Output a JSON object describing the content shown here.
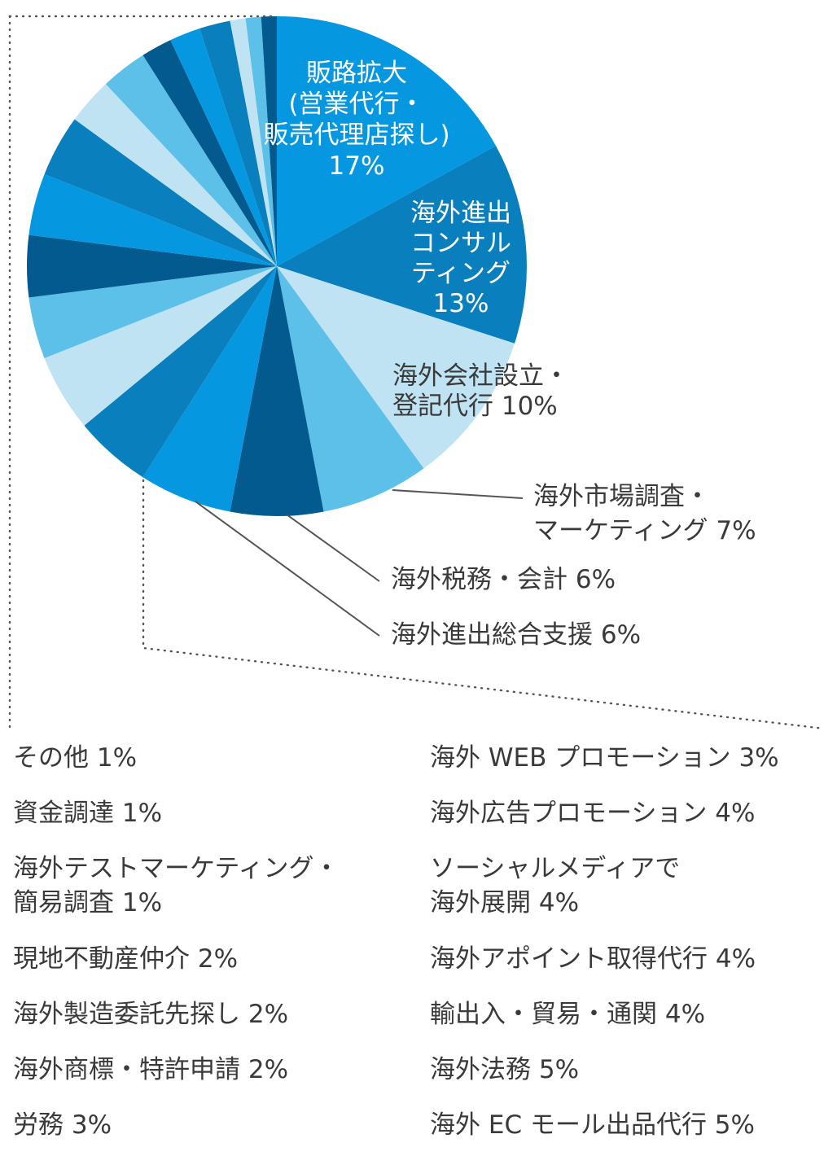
{
  "chart_data": {
    "type": "pie",
    "slices": [
      {
        "label": "販路拡大\n(営業代行・\n販売代理店探し)\n17%",
        "value": 17,
        "color": "#0598e1",
        "label_style": "inside"
      },
      {
        "label": "海外進出\nコンサル\nティング\n13%",
        "value": 13,
        "color": "#0a7fbd",
        "label_style": "inside"
      },
      {
        "label": "海外会社設立・\n登記代行 10%",
        "value": 10,
        "color": "#bfe3f2",
        "label_style": "inside-dark"
      },
      {
        "label": "海外市場調査・\nマーケティング 7%",
        "value": 7,
        "color": "#5cc0e8",
        "label_style": "callout"
      },
      {
        "label": "海外税務・会計 6%",
        "value": 6,
        "color": "#035a8e",
        "label_style": "callout"
      },
      {
        "label": "海外進出総合支援 6%",
        "value": 6,
        "color": "#0598e1",
        "label_style": "callout"
      },
      {
        "label": "海外 EC モール出品代行 5%",
        "value": 5,
        "color": "#0a7fbd",
        "label_style": "legend"
      },
      {
        "label": "海外法務 5%",
        "value": 5,
        "color": "#bfe3f2",
        "label_style": "legend"
      },
      {
        "label": "輸出入・貿易・通関 4%",
        "value": 4,
        "color": "#5cc0e8",
        "label_style": "legend"
      },
      {
        "label": "海外アポイント取得代行 4%",
        "value": 4,
        "color": "#035a8e",
        "label_style": "legend"
      },
      {
        "label": "ソーシャルメディアで\n海外展開 4%",
        "value": 4,
        "color": "#0598e1",
        "label_style": "legend"
      },
      {
        "label": "海外広告プロモーション 4%",
        "value": 4,
        "color": "#0a7fbd",
        "label_style": "legend"
      },
      {
        "label": "海外 WEB プロモーション 3%",
        "value": 3,
        "color": "#bfe3f2",
        "label_style": "legend"
      },
      {
        "label": "労務 3%",
        "value": 3,
        "color": "#5cc0e8",
        "label_style": "legend"
      },
      {
        "label": "海外商標・特許申請 2%",
        "value": 2,
        "color": "#035a8e",
        "label_style": "legend"
      },
      {
        "label": "海外製造委託先探し 2%",
        "value": 2,
        "color": "#0598e1",
        "label_style": "legend"
      },
      {
        "label": "現地不動産仲介 2%",
        "value": 2,
        "color": "#0a7fbd",
        "label_style": "legend"
      },
      {
        "label": "海外テストマーケティング・\n簡易調査 1%",
        "value": 1,
        "color": "#bfe3f2",
        "label_style": "legend"
      },
      {
        "label": "資金調達 1%",
        "value": 1,
        "color": "#5cc0e8",
        "label_style": "legend"
      },
      {
        "label": "その他 1%",
        "value": 1,
        "color": "#035a8e",
        "label_style": "legend"
      }
    ]
  },
  "legend": {
    "left": [
      "その他  1%",
      "資金調達  1%",
      "海外テストマーケティング・\n簡易調査  1%",
      "現地不動産仲介  2%",
      "海外製造委託先探し  2%",
      "海外商標・特許申請  2%",
      "労務  3%"
    ],
    "right": [
      "海外 WEB プロモーション  3%",
      "海外広告プロモーション  4%",
      "ソーシャルメディアで\n海外展開  4%",
      "海外アポイント取得代行  4%",
      "輸出入・貿易・通関  4%",
      "海外法務  5%",
      "海外 EC モール出品代行  5%"
    ]
  },
  "colors": {
    "text": "#3a3a3a",
    "leader_line": "#555555",
    "dotted_frame": "#555555"
  }
}
